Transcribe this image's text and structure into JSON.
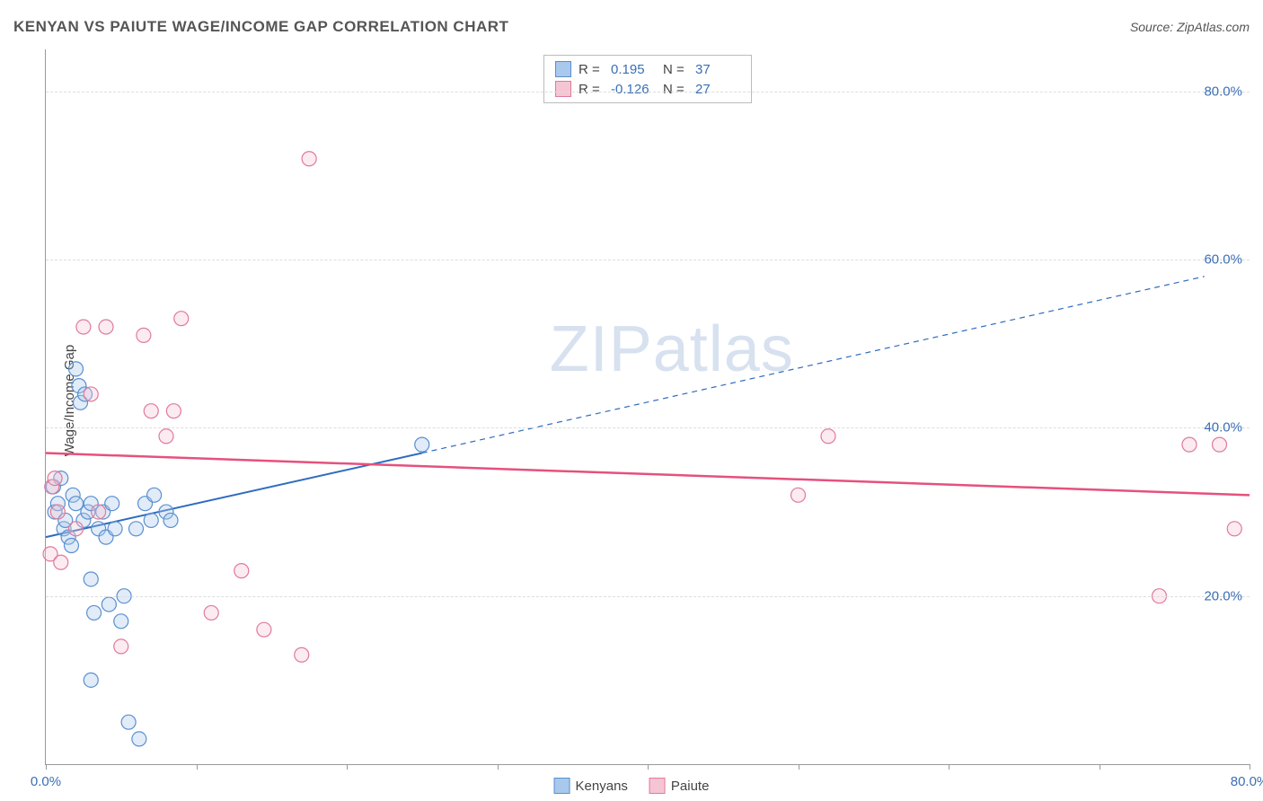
{
  "title": "KENYAN VS PAIUTE WAGE/INCOME GAP CORRELATION CHART",
  "source": "Source: ZipAtlas.com",
  "ylabel": "Wage/Income Gap",
  "watermark": "ZIPatlas",
  "chart": {
    "type": "scatter",
    "xlim": [
      0,
      80
    ],
    "ylim": [
      0,
      85
    ],
    "xtick_positions": [
      0,
      10,
      20,
      30,
      40,
      50,
      60,
      70,
      80
    ],
    "xtick_labels_shown": {
      "0": "0.0%",
      "80": "80.0%"
    },
    "ytick_positions": [
      20,
      40,
      60,
      80
    ],
    "ytick_labels": {
      "20": "20.0%",
      "40": "40.0%",
      "60": "60.0%",
      "80": "80.0%"
    },
    "grid_color": "#dddddd",
    "axis_color": "#999999",
    "background_color": "#ffffff",
    "label_color": "#3b6fb5",
    "marker_radius": 8,
    "marker_stroke_width": 1.2,
    "marker_fill_opacity": 0.35,
    "series": [
      {
        "name": "Kenyans",
        "fill_color": "#a8c8ec",
        "stroke_color": "#5a8fd0",
        "R": "0.195",
        "N": "37",
        "trend": {
          "x1": 0,
          "y1": 27,
          "x2": 25,
          "y2": 37,
          "solid_until_x": 25,
          "dash_to_x": 77,
          "dash_to_y": 58,
          "color": "#2e6bc0",
          "width": 2
        },
        "points": [
          [
            0.5,
            33
          ],
          [
            0.6,
            30
          ],
          [
            0.8,
            31
          ],
          [
            1.0,
            34
          ],
          [
            1.2,
            28
          ],
          [
            1.3,
            29
          ],
          [
            1.5,
            27
          ],
          [
            1.7,
            26
          ],
          [
            1.8,
            32
          ],
          [
            2.0,
            31
          ],
          [
            2.0,
            47
          ],
          [
            2.2,
            45
          ],
          [
            2.3,
            43
          ],
          [
            2.5,
            29
          ],
          [
            2.6,
            44
          ],
          [
            2.8,
            30
          ],
          [
            3.0,
            31
          ],
          [
            3.0,
            22
          ],
          [
            3.2,
            18
          ],
          [
            3.5,
            28
          ],
          [
            3.8,
            30
          ],
          [
            4.0,
            27
          ],
          [
            4.2,
            19
          ],
          [
            4.4,
            31
          ],
          [
            4.6,
            28
          ],
          [
            5.0,
            17
          ],
          [
            5.2,
            20
          ],
          [
            5.5,
            5
          ],
          [
            6.0,
            28
          ],
          [
            6.2,
            3
          ],
          [
            6.6,
            31
          ],
          [
            7.2,
            32
          ],
          [
            8.0,
            30
          ],
          [
            8.3,
            29
          ],
          [
            7.0,
            29
          ],
          [
            3.0,
            10
          ],
          [
            25.0,
            38
          ]
        ]
      },
      {
        "name": "Paiute",
        "fill_color": "#f6c5d3",
        "stroke_color": "#e07a9a",
        "R": "-0.126",
        "N": "27",
        "trend": {
          "x1": 0,
          "y1": 37,
          "x2": 80,
          "y2": 32,
          "solid_until_x": 80,
          "color": "#e5517e",
          "width": 2.5
        },
        "points": [
          [
            0.3,
            25
          ],
          [
            0.4,
            33
          ],
          [
            0.6,
            34
          ],
          [
            0.8,
            30
          ],
          [
            1.0,
            24
          ],
          [
            2.5,
            52
          ],
          [
            3.0,
            44
          ],
          [
            3.5,
            30
          ],
          [
            4.0,
            52
          ],
          [
            5.0,
            14
          ],
          [
            6.5,
            51
          ],
          [
            7.0,
            42
          ],
          [
            8.0,
            39
          ],
          [
            8.5,
            42
          ],
          [
            9.0,
            53
          ],
          [
            11.0,
            18
          ],
          [
            13.0,
            23
          ],
          [
            14.5,
            16
          ],
          [
            17.0,
            13
          ],
          [
            17.5,
            72
          ],
          [
            50.0,
            32
          ],
          [
            52.0,
            39
          ],
          [
            74.0,
            20
          ],
          [
            76.0,
            38
          ],
          [
            78.0,
            38
          ],
          [
            79.0,
            28
          ],
          [
            2.0,
            28
          ]
        ]
      }
    ]
  },
  "stats_box": {
    "rows": [
      {
        "swatch_fill": "#a8c8ec",
        "swatch_stroke": "#5a8fd0",
        "r_label": "R =",
        "r_val": "0.195",
        "n_label": "N =",
        "n_val": "37"
      },
      {
        "swatch_fill": "#f6c5d3",
        "swatch_stroke": "#e07a9a",
        "r_label": "R =",
        "r_val": "-0.126",
        "n_label": "N =",
        "n_val": "27"
      }
    ]
  },
  "legend": {
    "items": [
      {
        "label": "Kenyans",
        "fill": "#a8c8ec",
        "stroke": "#5a8fd0"
      },
      {
        "label": "Paiute",
        "fill": "#f6c5d3",
        "stroke": "#e07a9a"
      }
    ]
  }
}
